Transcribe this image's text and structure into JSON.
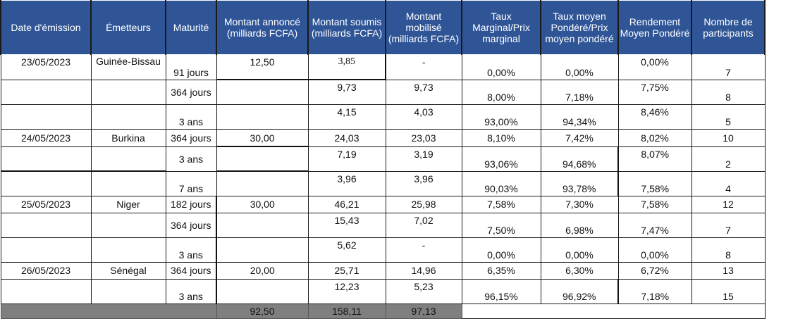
{
  "headers": {
    "date": "Date d'émission",
    "emetteurs": "Émetteurs",
    "maturite": "Maturité",
    "montant_annonce": "Montant annoncé (milliards FCFA)",
    "montant_soumis": "Montant soumis (milliards FCFA)",
    "montant_mobilise": "Montant mobilisé (milliards FCFA)",
    "taux_marginal": "Taux Marginal/Prix marginal",
    "taux_moyen": "Taux moyen Pondéré/Prix moyen pondéré",
    "rendement": "Rendement Moyen Pondéré",
    "participants": "Nombre de participants"
  },
  "rows": [
    {
      "date": "23/05/2023",
      "emetteur": "Guinée-Bissau",
      "maturite": "91 jours",
      "annonce": "12,50",
      "soumis": "3,85",
      "mobilise": "-",
      "taux_marginal": "0,00%",
      "taux_moyen": "0,00%",
      "rendement": "0,00%",
      "participants": "7"
    },
    {
      "date": "",
      "emetteur": "",
      "maturite": "364 jours",
      "annonce": "",
      "soumis": "9,73",
      "mobilise": "9,73",
      "taux_marginal": "8,00%",
      "taux_moyen": "7,18%",
      "rendement": "7,75%",
      "participants": "8"
    },
    {
      "date": "",
      "emetteur": "",
      "maturite": "3 ans",
      "annonce": "",
      "soumis": "4,15",
      "mobilise": "4,03",
      "taux_marginal": "93,00%",
      "taux_moyen": "94,34%",
      "rendement": "8,46%",
      "participants": "5"
    },
    {
      "date": "24/05/2023",
      "emetteur": "Burkina",
      "maturite": "364 jours",
      "annonce": "30,00",
      "soumis": "24,03",
      "mobilise": "23,03",
      "taux_marginal": "8,10%",
      "taux_moyen": "7,42%",
      "rendement": "8,02%",
      "participants": "10"
    },
    {
      "date": "",
      "emetteur": "",
      "maturite": "3 ans",
      "annonce": "",
      "soumis": "7,19",
      "mobilise": "3,19",
      "taux_marginal": "93,06%",
      "taux_moyen": "94,68%",
      "rendement": "8,07%",
      "participants": "2"
    },
    {
      "date": "",
      "emetteur": "",
      "maturite": "7 ans",
      "annonce": "",
      "soumis": "3,96",
      "mobilise": "3,96",
      "taux_marginal": "90,03%",
      "taux_moyen": "93,78%",
      "rendement": "7,58%",
      "participants": "4"
    },
    {
      "date": "25/05/2023",
      "emetteur": "Niger",
      "maturite": "182 jours",
      "annonce": "30,00",
      "soumis": "46,21",
      "mobilise": "25,98",
      "taux_marginal": "7,58%",
      "taux_moyen": "7,30%",
      "rendement": "7,58%",
      "participants": "12"
    },
    {
      "date": "",
      "emetteur": "",
      "maturite": "364 jours",
      "annonce": "",
      "soumis": "15,43",
      "mobilise": "7,02",
      "taux_marginal": "7,50%",
      "taux_moyen": "6,98%",
      "rendement": "7,47%",
      "participants": "7"
    },
    {
      "date": "",
      "emetteur": "",
      "maturite": "3 ans",
      "annonce": "",
      "soumis": "5,62",
      "mobilise": "-",
      "taux_marginal": "0,00%",
      "taux_moyen": "0,00%",
      "rendement": "0,00%",
      "participants": "8"
    },
    {
      "date": "26/05/2023",
      "emetteur": "Sénégal",
      "maturite": "364 jours",
      "annonce": "20,00",
      "soumis": "25,71",
      "mobilise": "14,96",
      "taux_marginal": "6,35%",
      "taux_moyen": "6,30%",
      "rendement": "6,72%",
      "participants": "13"
    },
    {
      "date": "",
      "emetteur": "",
      "maturite": "3 ans",
      "annonce": "",
      "soumis": "12,23",
      "mobilise": "5,23",
      "taux_marginal": "96,15%",
      "taux_moyen": "96,92%",
      "rendement": "7,18%",
      "participants": "15"
    }
  ],
  "totals": {
    "annonce": "92,50",
    "soumis": "158,11",
    "mobilise": "97,13"
  },
  "colors": {
    "header_bg": "#2f5597",
    "total_bg": "#7f7f7f"
  }
}
